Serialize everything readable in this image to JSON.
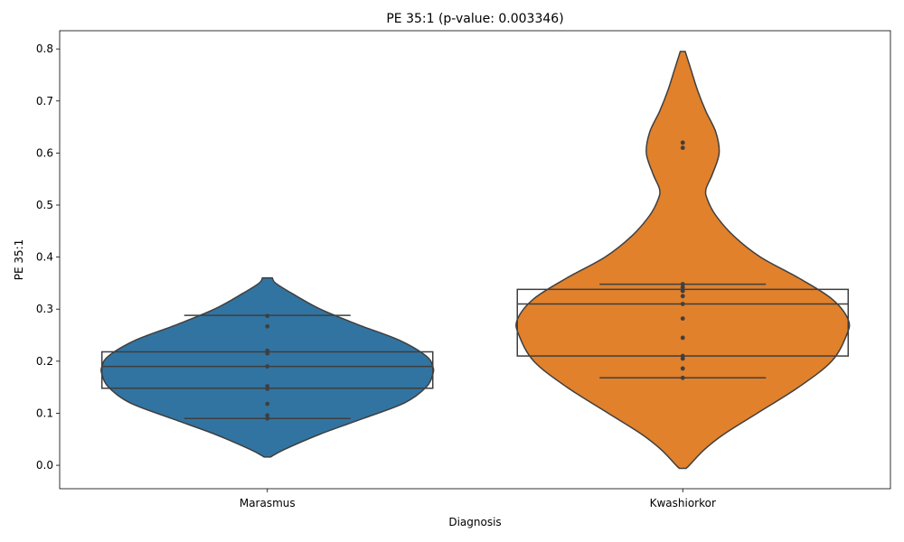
{
  "chart_data": {
    "type": "violin",
    "title": "PE 35:1 (p-value: 0.003346)",
    "xlabel": "Diagnosis",
    "ylabel": "PE 35:1",
    "ylim": [
      -0.045,
      0.835
    ],
    "yticks": [
      "0.0",
      "0.1",
      "0.2",
      "0.3",
      "0.4",
      "0.5",
      "0.6",
      "0.7",
      "0.8"
    ],
    "grid": false,
    "categories": [
      "Marasmus",
      "Kwashiorkor"
    ],
    "groups": [
      {
        "category": "Marasmus",
        "color": "#3274a1",
        "box": {
          "q1": 0.148,
          "median": 0.19,
          "q3": 0.218
        },
        "whiskers": {
          "low": 0.09,
          "high": 0.288
        },
        "points": [
          0.09,
          0.096,
          0.118,
          0.147,
          0.152,
          0.19,
          0.215,
          0.22,
          0.267,
          0.287
        ],
        "violin_density": [
          [
            0.016,
            0.02
          ],
          [
            0.03,
            0.1
          ],
          [
            0.06,
            0.32
          ],
          [
            0.09,
            0.58
          ],
          [
            0.12,
            0.83
          ],
          [
            0.15,
            0.96
          ],
          [
            0.175,
            1.0
          ],
          [
            0.19,
            1.0
          ],
          [
            0.21,
            0.96
          ],
          [
            0.24,
            0.8
          ],
          [
            0.27,
            0.55
          ],
          [
            0.3,
            0.32
          ],
          [
            0.33,
            0.15
          ],
          [
            0.35,
            0.05
          ],
          [
            0.36,
            0.03
          ]
        ]
      },
      {
        "category": "Kwashiorkor",
        "color": "#e1812c",
        "box": {
          "q1": 0.21,
          "median": 0.31,
          "q3": 0.338
        },
        "whiskers": {
          "low": 0.168,
          "high": 0.348
        },
        "points": [
          0.168,
          0.186,
          0.205,
          0.21,
          0.245,
          0.282,
          0.31,
          0.325,
          0.335,
          0.342,
          0.348,
          0.61,
          0.62
        ],
        "violin_density": [
          [
            -0.006,
            0.02
          ],
          [
            0.0,
            0.04
          ],
          [
            0.03,
            0.13
          ],
          [
            0.06,
            0.25
          ],
          [
            0.1,
            0.45
          ],
          [
            0.15,
            0.7
          ],
          [
            0.2,
            0.9
          ],
          [
            0.25,
            0.99
          ],
          [
            0.28,
            1.0
          ],
          [
            0.32,
            0.9
          ],
          [
            0.36,
            0.7
          ],
          [
            0.4,
            0.47
          ],
          [
            0.44,
            0.31
          ],
          [
            0.48,
            0.2
          ],
          [
            0.51,
            0.15
          ],
          [
            0.53,
            0.14
          ],
          [
            0.56,
            0.18
          ],
          [
            0.6,
            0.22
          ],
          [
            0.64,
            0.2
          ],
          [
            0.68,
            0.14
          ],
          [
            0.72,
            0.09
          ],
          [
            0.76,
            0.05
          ],
          [
            0.785,
            0.025
          ],
          [
            0.795,
            0.015
          ]
        ]
      }
    ]
  }
}
